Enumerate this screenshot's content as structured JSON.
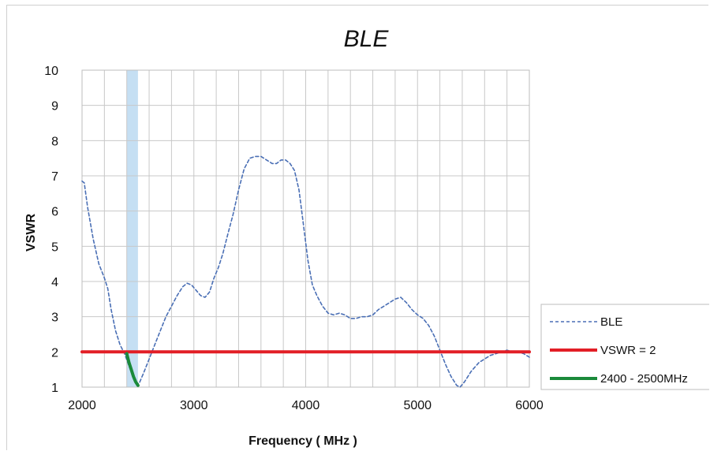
{
  "chart_data": {
    "type": "line",
    "title": "BLE",
    "xlabel": "Frequency ( MHz )",
    "ylabel": "VSWR",
    "xlim": [
      2000,
      6000
    ],
    "ylim": [
      1,
      10
    ],
    "xticks": [
      "2000",
      "3000",
      "4000",
      "5000",
      "6000"
    ],
    "yticks": [
      "1",
      "2",
      "3",
      "4",
      "5",
      "6",
      "7",
      "8",
      "9",
      "10"
    ],
    "x_gridlines": [
      2000,
      2200,
      2400,
      2600,
      2800,
      3000,
      3200,
      3400,
      3600,
      3800,
      4000,
      4200,
      4400,
      4600,
      4800,
      5000,
      5200,
      5400,
      5600,
      5800,
      6000
    ],
    "grid": true,
    "legend_position": "bottom-right",
    "band": {
      "x0": 2400,
      "x1": 2500,
      "color": "#c5dff3"
    },
    "series": [
      {
        "name": "BLE",
        "style": "dashed",
        "color": "#4a6fb5",
        "x": [
          2000,
          2020,
          2050,
          2100,
          2150,
          2200,
          2230,
          2260,
          2300,
          2340,
          2380,
          2420,
          2460,
          2490,
          2510,
          2550,
          2600,
          2650,
          2700,
          2750,
          2800,
          2850,
          2900,
          2940,
          2980,
          3020,
          3060,
          3100,
          3140,
          3180,
          3220,
          3260,
          3300,
          3350,
          3400,
          3450,
          3500,
          3550,
          3600,
          3650,
          3700,
          3740,
          3780,
          3820,
          3860,
          3900,
          3940,
          3980,
          4020,
          4060,
          4100,
          4150,
          4200,
          4250,
          4300,
          4350,
          4400,
          4450,
          4500,
          4550,
          4600,
          4650,
          4700,
          4750,
          4800,
          4850,
          4900,
          4950,
          5000,
          5050,
          5100,
          5150,
          5200,
          5250,
          5300,
          5350,
          5380,
          5420,
          5480,
          5550,
          5600,
          5650,
          5700,
          5750,
          5800,
          5850,
          5900,
          5950,
          6000
        ],
        "y": [
          6.85,
          6.8,
          6.1,
          5.2,
          4.5,
          4.1,
          3.8,
          3.2,
          2.6,
          2.2,
          1.95,
          1.6,
          1.3,
          1.1,
          1.1,
          1.4,
          1.8,
          2.2,
          2.6,
          3.0,
          3.3,
          3.6,
          3.85,
          3.95,
          3.9,
          3.75,
          3.6,
          3.55,
          3.7,
          4.1,
          4.4,
          4.8,
          5.3,
          5.9,
          6.6,
          7.2,
          7.5,
          7.55,
          7.55,
          7.45,
          7.35,
          7.35,
          7.45,
          7.45,
          7.35,
          7.15,
          6.6,
          5.6,
          4.6,
          3.9,
          3.6,
          3.3,
          3.1,
          3.05,
          3.1,
          3.05,
          2.95,
          2.95,
          3.0,
          3.0,
          3.05,
          3.2,
          3.3,
          3.4,
          3.5,
          3.55,
          3.4,
          3.2,
          3.05,
          2.95,
          2.75,
          2.45,
          2.05,
          1.65,
          1.3,
          1.05,
          1.0,
          1.15,
          1.45,
          1.7,
          1.8,
          1.9,
          1.95,
          2.0,
          2.05,
          2.0,
          2.0,
          1.95,
          1.85
        ]
      },
      {
        "name": "VSWR = 2",
        "style": "solid",
        "color": "#e21e26",
        "x": [
          2000,
          6000
        ],
        "y": [
          2,
          2
        ]
      },
      {
        "name": "2400 - 2500MHz",
        "style": "solid",
        "color": "#1a8a3a",
        "x": [
          2400,
          2420,
          2440,
          2460,
          2480,
          2500
        ],
        "y": [
          1.95,
          1.7,
          1.5,
          1.3,
          1.15,
          1.05
        ]
      }
    ]
  }
}
